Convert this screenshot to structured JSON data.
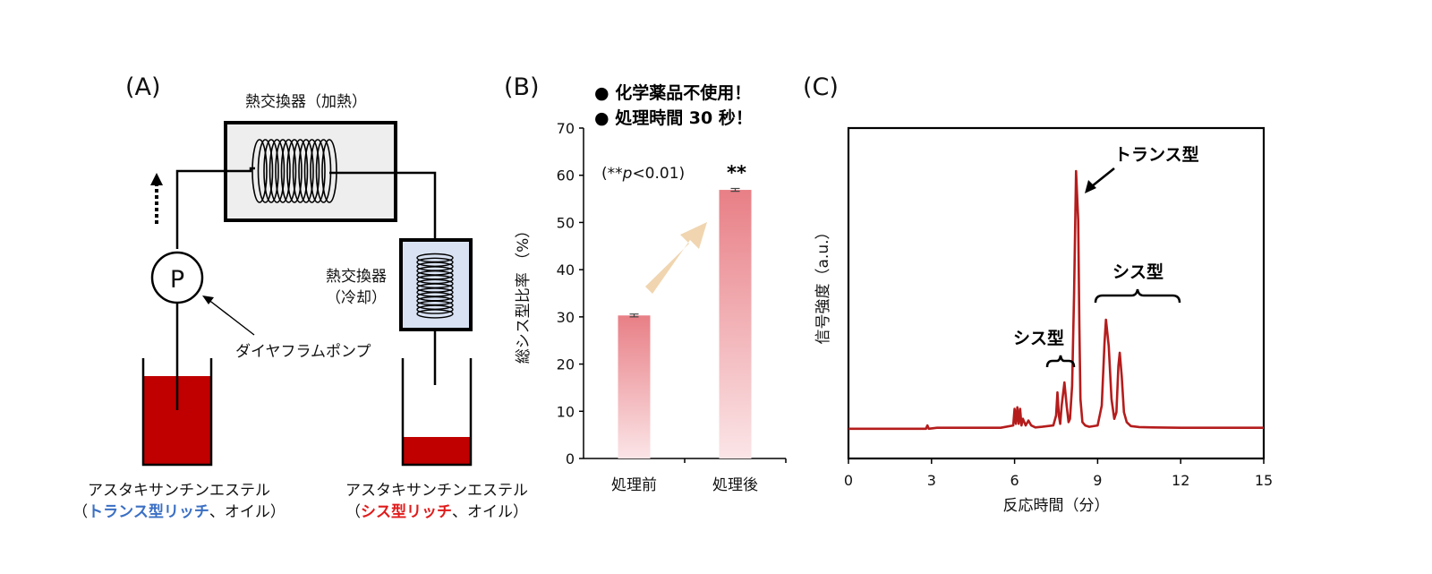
{
  "panel_a": {
    "label": "(A)",
    "heater_label": "熱交換器（加熱）",
    "cooler_label_line1": "熱交換器",
    "cooler_label_line2": "（冷却）",
    "pump_symbol": "P",
    "pump_label": "ダイヤフラムポンプ",
    "left_product": {
      "line1": "アスタキサンチンエステル",
      "open": "（",
      "highlight": "トランス型リッチ",
      "rest": "、オイル）",
      "highlight_color": "#3a6fc4"
    },
    "right_product": {
      "line1": "アスタキサンチンエステル",
      "open": "（",
      "highlight": "シス型リッチ",
      "rest": "、オイル）",
      "highlight_color": "#e01b1b"
    },
    "oil_color": "#c00000",
    "heater_fill": "#eeeeee",
    "cooler_fill": "#d8e2f3"
  },
  "panel_b": {
    "label": "(B)",
    "bullets": [
      "●  化学薬品不使用！",
      "●  処理時間 30 秒！"
    ],
    "significance_prefix": "(**",
    "significance_p": "p",
    "significance_suffix": "<0.01)",
    "significance_marker": "**",
    "bar_color_top": "#e87f86",
    "bar_color_bottom": "#fbe5e7",
    "arrow_color": "#f0d5b0"
  },
  "panel_c": {
    "label": "(C)",
    "line_color": "#b51c1c",
    "annotations": {
      "trans": "トランス型",
      "cis_left": "シス型",
      "cis_right": "シス型"
    }
  },
  "chart_data": [
    {
      "type": "bar",
      "categories": [
        "処理前",
        "処理後"
      ],
      "values": [
        30.3,
        56.9
      ],
      "errors": [
        0.3,
        0.3
      ],
      "ylabel": "総シス型比率 （%）",
      "ylim": [
        0,
        70
      ],
      "yticks": [
        0,
        10,
        20,
        30,
        40,
        50,
        60,
        70
      ],
      "grid": false
    },
    {
      "type": "line",
      "xlabel": "反応時間（分）",
      "ylabel": "信号強度（a.u.）",
      "xlim": [
        0,
        15
      ],
      "xticks": [
        0,
        3,
        6,
        9,
        12,
        15
      ],
      "ylim": [
        0,
        100
      ],
      "grid": false,
      "x": [
        0,
        2.8,
        2.85,
        2.9,
        3.2,
        4.0,
        5.5,
        5.95,
        6.0,
        6.05,
        6.1,
        6.15,
        6.2,
        6.25,
        6.3,
        6.4,
        6.5,
        6.6,
        6.75,
        7.0,
        7.4,
        7.5,
        7.55,
        7.6,
        7.65,
        7.7,
        7.8,
        7.88,
        7.95,
        8.0,
        8.08,
        8.15,
        8.22,
        8.3,
        8.34,
        8.38,
        8.45,
        8.55,
        8.7,
        9.0,
        9.15,
        9.25,
        9.3,
        9.4,
        9.5,
        9.6,
        9.68,
        9.75,
        9.8,
        9.87,
        9.95,
        10.05,
        10.2,
        10.5,
        11.0,
        12.0,
        13.0,
        14.0,
        15.0
      ],
      "y": [
        9,
        9,
        10,
        9,
        9.3,
        9.3,
        9.3,
        10,
        15,
        10.5,
        15.5,
        10.5,
        15,
        10,
        12,
        10,
        11.5,
        10,
        9.4,
        9.6,
        10,
        13,
        20,
        13,
        10.5,
        16,
        23,
        16,
        11,
        12,
        22,
        50,
        87,
        72,
        40,
        18,
        11,
        10,
        9.6,
        10,
        16,
        35,
        42,
        34,
        18,
        12,
        14,
        28,
        32,
        25,
        14,
        11,
        9.8,
        9.5,
        9.4,
        9.3,
        9.3,
        9.3,
        9.3
      ]
    }
  ]
}
